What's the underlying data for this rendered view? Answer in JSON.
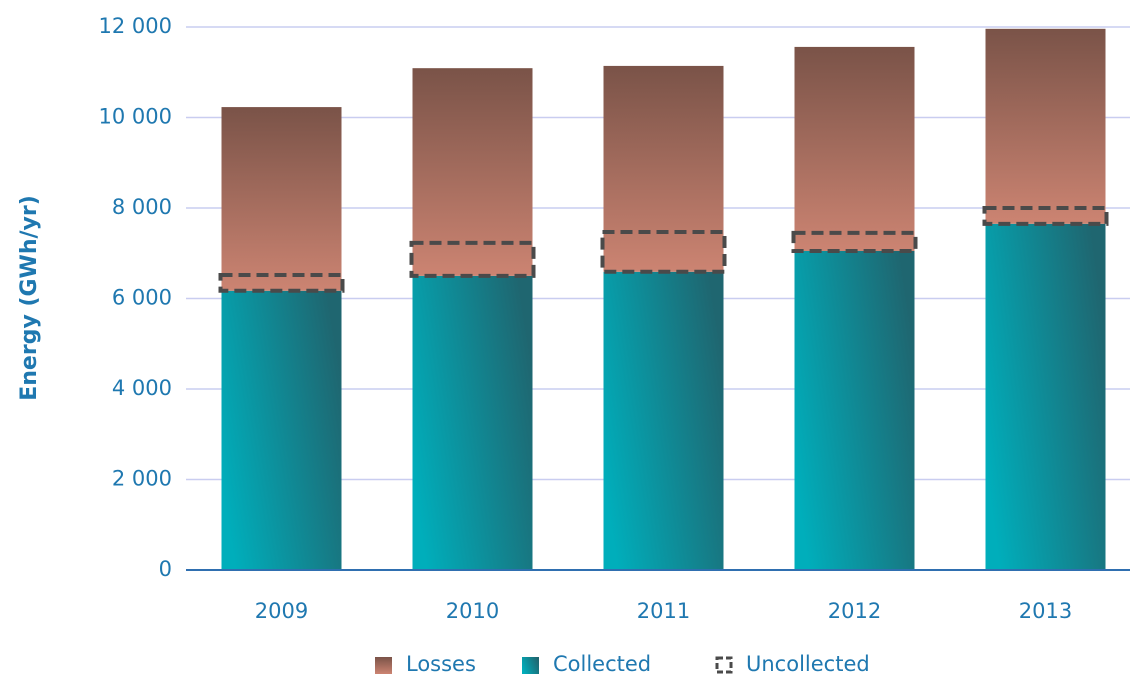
{
  "chart_data": {
    "type": "stacked_bar",
    "ylabel": "Energy (GWh/yr)",
    "categories": [
      "2009",
      "2010",
      "2011",
      "2012",
      "2013"
    ],
    "series": [
      {
        "name": "Collected",
        "color": [
          "#00aebb",
          "#1f6670"
        ],
        "values": [
          6170,
          6500,
          6590,
          7050,
          7650
        ]
      },
      {
        "name": "Losses",
        "color": [
          "#7a5348",
          "#cc8472"
        ],
        "values": [
          4060,
          4590,
          4550,
          4510,
          4310
        ]
      },
      {
        "name": "Uncollected",
        "color": "#4a4a4a",
        "dashed": true,
        "values": [
          350,
          730,
          880,
          400,
          350
        ]
      }
    ],
    "ylim": [
      0,
      12000
    ],
    "yticks": [
      0,
      {
        "value": 2000,
        "label": "2 000"
      },
      {
        "value": 4000,
        "label": "4 000"
      },
      {
        "value": 6000,
        "label": "6 000"
      },
      {
        "value": 8000,
        "label": "8 000"
      },
      {
        "value": 10000,
        "label": "10 000"
      },
      {
        "value": 12000,
        "label": "12 000"
      }
    ],
    "grid": true,
    "legend": "bottom"
  }
}
